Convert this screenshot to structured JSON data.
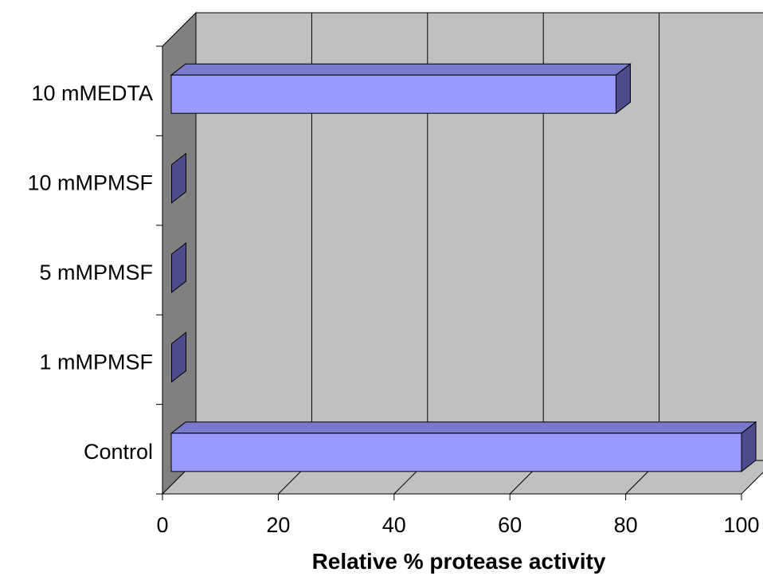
{
  "chart_data": {
    "type": "bar",
    "orientation": "horizontal",
    "style": "3d",
    "categories": [
      "Control",
      "1 mMPMSF",
      "5 mMPMSF",
      "10 mMPMSF",
      "10 mMEDTA"
    ],
    "values": [
      100,
      0,
      0,
      0,
      78
    ],
    "title": "",
    "xlabel": "Relative % protease activity",
    "ylabel": "",
    "xlim": [
      0,
      100
    ],
    "xticks": [
      0,
      20,
      40,
      60,
      80,
      100
    ],
    "xtick_labels": [
      "0",
      "20",
      "40",
      "60",
      "80",
      "100"
    ],
    "grid": true,
    "legend": "none",
    "colors": {
      "bar_front": "#9999ff",
      "bar_top": "#7a7acc",
      "bar_side": "#4d4d8c",
      "wall_back": "#c0c0c0",
      "wall_side": "#808080",
      "floor": "#c0c0c0",
      "gridline": "#000000"
    }
  }
}
